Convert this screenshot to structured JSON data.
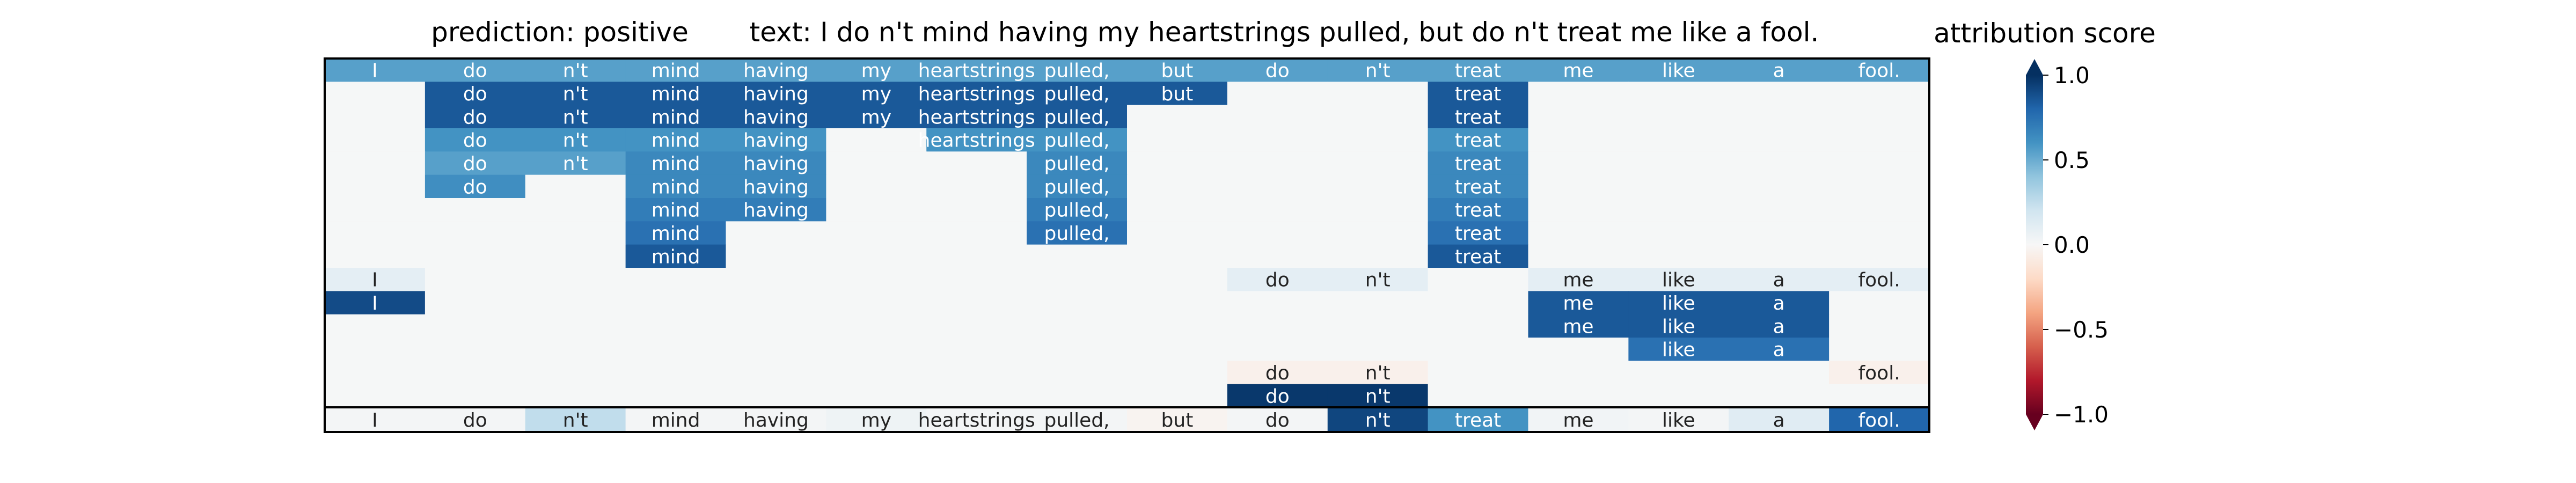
{
  "chart_data": {
    "type": "heatmap",
    "prediction_label": "prediction:  positive",
    "text_label": "text:  I do n't mind having my heartstrings pulled, but do n't treat me like a fool.",
    "colorbar_label": "attribution score",
    "colorbar_ticks": [
      "1.0",
      "0.5",
      "0.0",
      "−0.5",
      "−1.0"
    ],
    "colorbar_tick_values": [
      1.0,
      0.5,
      0.0,
      -0.5,
      -1.0
    ],
    "value_range": [
      -1.0,
      1.0
    ],
    "colormap": "RdBu",
    "colormap_stops": [
      "#67001f",
      "#b2182b",
      "#d6604d",
      "#f4a582",
      "#fddbc7",
      "#f7f7f7",
      "#d1e5f0",
      "#92c5de",
      "#4393c3",
      "#2166ac",
      "#053061"
    ],
    "empty_cell_color": "#f5f7f7",
    "tokens": [
      "I",
      "do",
      "n't",
      "mind",
      "having",
      "my",
      "heartstrings",
      "pulled,",
      "but",
      "do",
      "n't",
      "treat",
      "me",
      "like",
      "a",
      "fool."
    ],
    "rows": [
      [
        0.55,
        0.55,
        0.55,
        0.55,
        0.55,
        0.55,
        0.55,
        0.55,
        0.55,
        0.55,
        0.55,
        0.55,
        0.55,
        0.55,
        0.55,
        0.55
      ],
      [
        null,
        0.85,
        0.85,
        0.85,
        0.85,
        0.85,
        0.85,
        0.85,
        0.85,
        null,
        null,
        0.85,
        null,
        null,
        null,
        null
      ],
      [
        null,
        0.85,
        0.85,
        0.85,
        0.85,
        0.85,
        0.85,
        0.85,
        null,
        null,
        null,
        0.85,
        null,
        null,
        null,
        null
      ],
      [
        null,
        0.6,
        0.6,
        0.6,
        0.6,
        null,
        0.6,
        0.6,
        null,
        null,
        null,
        0.6,
        null,
        null,
        null,
        null
      ],
      [
        null,
        0.55,
        0.55,
        0.65,
        0.65,
        null,
        null,
        0.65,
        null,
        null,
        null,
        0.65,
        null,
        null,
        null,
        null
      ],
      [
        null,
        0.62,
        null,
        0.65,
        0.65,
        null,
        null,
        0.65,
        null,
        null,
        null,
        0.65,
        null,
        null,
        null,
        null
      ],
      [
        null,
        null,
        null,
        0.7,
        0.7,
        null,
        null,
        0.7,
        null,
        null,
        null,
        0.7,
        null,
        null,
        null,
        null
      ],
      [
        null,
        null,
        null,
        0.75,
        null,
        null,
        null,
        0.75,
        null,
        null,
        null,
        0.75,
        null,
        null,
        null,
        null
      ],
      [
        null,
        null,
        null,
        0.85,
        null,
        null,
        null,
        null,
        null,
        null,
        null,
        0.85,
        null,
        null,
        null,
        null
      ],
      [
        0.1,
        null,
        null,
        null,
        null,
        null,
        null,
        null,
        null,
        0.1,
        0.1,
        null,
        0.1,
        0.1,
        0.1,
        0.1
      ],
      [
        0.9,
        null,
        null,
        null,
        null,
        null,
        null,
        null,
        null,
        null,
        null,
        null,
        0.85,
        0.85,
        0.85,
        null
      ],
      [
        null,
        null,
        null,
        null,
        null,
        null,
        null,
        null,
        null,
        null,
        null,
        null,
        0.85,
        0.85,
        0.85,
        null
      ],
      [
        null,
        null,
        null,
        null,
        null,
        null,
        null,
        null,
        null,
        null,
        null,
        null,
        null,
        0.75,
        0.75,
        null
      ],
      [
        null,
        null,
        null,
        null,
        null,
        null,
        null,
        null,
        null,
        -0.05,
        -0.05,
        null,
        null,
        null,
        null,
        -0.05
      ],
      [
        null,
        null,
        null,
        null,
        null,
        null,
        null,
        null,
        null,
        0.97,
        0.97,
        null,
        null,
        null,
        null,
        null
      ]
    ],
    "summary_row": [
      0.02,
      0.02,
      0.25,
      0.02,
      0.02,
      0.05,
      0.02,
      0.02,
      -0.03,
      0.02,
      0.92,
      0.6,
      0.03,
      0.02,
      0.12,
      0.8
    ]
  }
}
